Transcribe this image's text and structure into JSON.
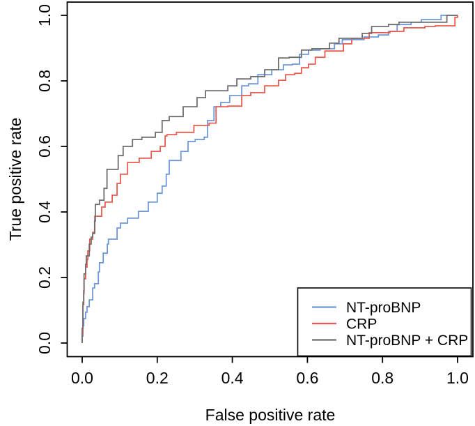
{
  "chart_data": {
    "type": "line",
    "subtype": "roc_step_curves",
    "title": "",
    "xlabel": "False positive rate",
    "ylabel": "True positive rate",
    "xlim": [
      0.0,
      1.0
    ],
    "ylim": [
      0.0,
      1.0
    ],
    "xticks": [
      "0.0",
      "0.2",
      "0.4",
      "0.6",
      "0.8",
      "1.0"
    ],
    "yticks": [
      "0.0",
      "0.2",
      "0.4",
      "0.6",
      "0.8",
      "1.0"
    ],
    "grid": false,
    "background_color": "#ffffff",
    "axis_color": "#000000",
    "legend": {
      "position": "bottom-right"
    },
    "series": [
      {
        "name": "NT-proBNP",
        "color": "#6e97d8",
        "points": [
          [
            0.0,
            0.0
          ],
          [
            0.0,
            0.021
          ],
          [
            0.002,
            0.04
          ],
          [
            0.002,
            0.053
          ],
          [
            0.004,
            0.075
          ],
          [
            0.009,
            0.094
          ],
          [
            0.013,
            0.111
          ],
          [
            0.019,
            0.132
          ],
          [
            0.028,
            0.168
          ],
          [
            0.033,
            0.181
          ],
          [
            0.043,
            0.217
          ],
          [
            0.046,
            0.245
          ],
          [
            0.056,
            0.274
          ],
          [
            0.067,
            0.302
          ],
          [
            0.07,
            0.317
          ],
          [
            0.093,
            0.351
          ],
          [
            0.102,
            0.366
          ],
          [
            0.121,
            0.381
          ],
          [
            0.15,
            0.402
          ],
          [
            0.176,
            0.43
          ],
          [
            0.2,
            0.457
          ],
          [
            0.213,
            0.479
          ],
          [
            0.224,
            0.515
          ],
          [
            0.232,
            0.557
          ],
          [
            0.263,
            0.585
          ],
          [
            0.282,
            0.615
          ],
          [
            0.301,
            0.621
          ],
          [
            0.325,
            0.628
          ],
          [
            0.343,
            0.679
          ],
          [
            0.351,
            0.721
          ],
          [
            0.369,
            0.734
          ],
          [
            0.393,
            0.755
          ],
          [
            0.425,
            0.785
          ],
          [
            0.443,
            0.791
          ],
          [
            0.468,
            0.819
          ],
          [
            0.505,
            0.834
          ],
          [
            0.536,
            0.849
          ],
          [
            0.56,
            0.851
          ],
          [
            0.579,
            0.881
          ],
          [
            0.603,
            0.894
          ],
          [
            0.634,
            0.898
          ],
          [
            0.672,
            0.913
          ],
          [
            0.714,
            0.926
          ],
          [
            0.751,
            0.934
          ],
          [
            0.789,
            0.94
          ],
          [
            0.816,
            0.951
          ],
          [
            0.839,
            0.972
          ],
          [
            0.876,
            0.979
          ],
          [
            0.931,
            0.987
          ],
          [
            0.981,
            1.0
          ],
          [
            1.0,
            1.0
          ]
        ]
      },
      {
        "name": "CRP",
        "color": "#e85c50",
        "points": [
          [
            0.0,
            0.0
          ],
          [
            0.0,
            0.03
          ],
          [
            0.002,
            0.06
          ],
          [
            0.002,
            0.117
          ],
          [
            0.004,
            0.15
          ],
          [
            0.006,
            0.196
          ],
          [
            0.009,
            0.232
          ],
          [
            0.013,
            0.255
          ],
          [
            0.015,
            0.281
          ],
          [
            0.02,
            0.317
          ],
          [
            0.028,
            0.338
          ],
          [
            0.039,
            0.387
          ],
          [
            0.052,
            0.415
          ],
          [
            0.061,
            0.43
          ],
          [
            0.08,
            0.451
          ],
          [
            0.093,
            0.487
          ],
          [
            0.102,
            0.515
          ],
          [
            0.121,
            0.551
          ],
          [
            0.152,
            0.564
          ],
          [
            0.184,
            0.585
          ],
          [
            0.208,
            0.6
          ],
          [
            0.221,
            0.632
          ],
          [
            0.226,
            0.636
          ],
          [
            0.276,
            0.643
          ],
          [
            0.319,
            0.664
          ],
          [
            0.338,
            0.671
          ],
          [
            0.375,
            0.721
          ],
          [
            0.388,
            0.723
          ],
          [
            0.425,
            0.755
          ],
          [
            0.449,
            0.764
          ],
          [
            0.486,
            0.785
          ],
          [
            0.523,
            0.802
          ],
          [
            0.542,
            0.819
          ],
          [
            0.566,
            0.823
          ],
          [
            0.584,
            0.84
          ],
          [
            0.603,
            0.851
          ],
          [
            0.621,
            0.872
          ],
          [
            0.672,
            0.891
          ],
          [
            0.696,
            0.913
          ],
          [
            0.74,
            0.93
          ],
          [
            0.789,
            0.947
          ],
          [
            0.82,
            0.951
          ],
          [
            0.857,
            0.962
          ],
          [
            0.894,
            0.962
          ],
          [
            0.913,
            0.966
          ],
          [
            0.968,
            0.968
          ],
          [
            0.993,
            0.994
          ],
          [
            1.0,
            1.0
          ]
        ]
      },
      {
        "name": "NT-proBNP + CRP",
        "color": "#6e6e6e",
        "points": [
          [
            0.0,
            0.0
          ],
          [
            0.0,
            0.045
          ],
          [
            0.002,
            0.089
          ],
          [
            0.002,
            0.124
          ],
          [
            0.004,
            0.16
          ],
          [
            0.006,
            0.211
          ],
          [
            0.009,
            0.24
          ],
          [
            0.011,
            0.266
          ],
          [
            0.019,
            0.302
          ],
          [
            0.024,
            0.323
          ],
          [
            0.028,
            0.334
          ],
          [
            0.033,
            0.372
          ],
          [
            0.037,
            0.423
          ],
          [
            0.046,
            0.436
          ],
          [
            0.058,
            0.472
          ],
          [
            0.074,
            0.53
          ],
          [
            0.096,
            0.572
          ],
          [
            0.109,
            0.6
          ],
          [
            0.134,
            0.621
          ],
          [
            0.184,
            0.628
          ],
          [
            0.195,
            0.643
          ],
          [
            0.213,
            0.679
          ],
          [
            0.232,
            0.691
          ],
          [
            0.269,
            0.721
          ],
          [
            0.306,
            0.749
          ],
          [
            0.351,
            0.77
          ],
          [
            0.388,
            0.785
          ],
          [
            0.436,
            0.806
          ],
          [
            0.449,
            0.813
          ],
          [
            0.486,
            0.834
          ],
          [
            0.523,
            0.87
          ],
          [
            0.579,
            0.872
          ],
          [
            0.584,
            0.894
          ],
          [
            0.64,
            0.898
          ],
          [
            0.659,
            0.915
          ],
          [
            0.709,
            0.93
          ],
          [
            0.746,
            0.945
          ],
          [
            0.796,
            0.966
          ],
          [
            0.816,
            0.972
          ],
          [
            0.844,
            0.979
          ],
          [
            0.95,
            0.979
          ],
          [
            0.993,
            1.0
          ],
          [
            1.0,
            1.0
          ]
        ]
      }
    ]
  }
}
